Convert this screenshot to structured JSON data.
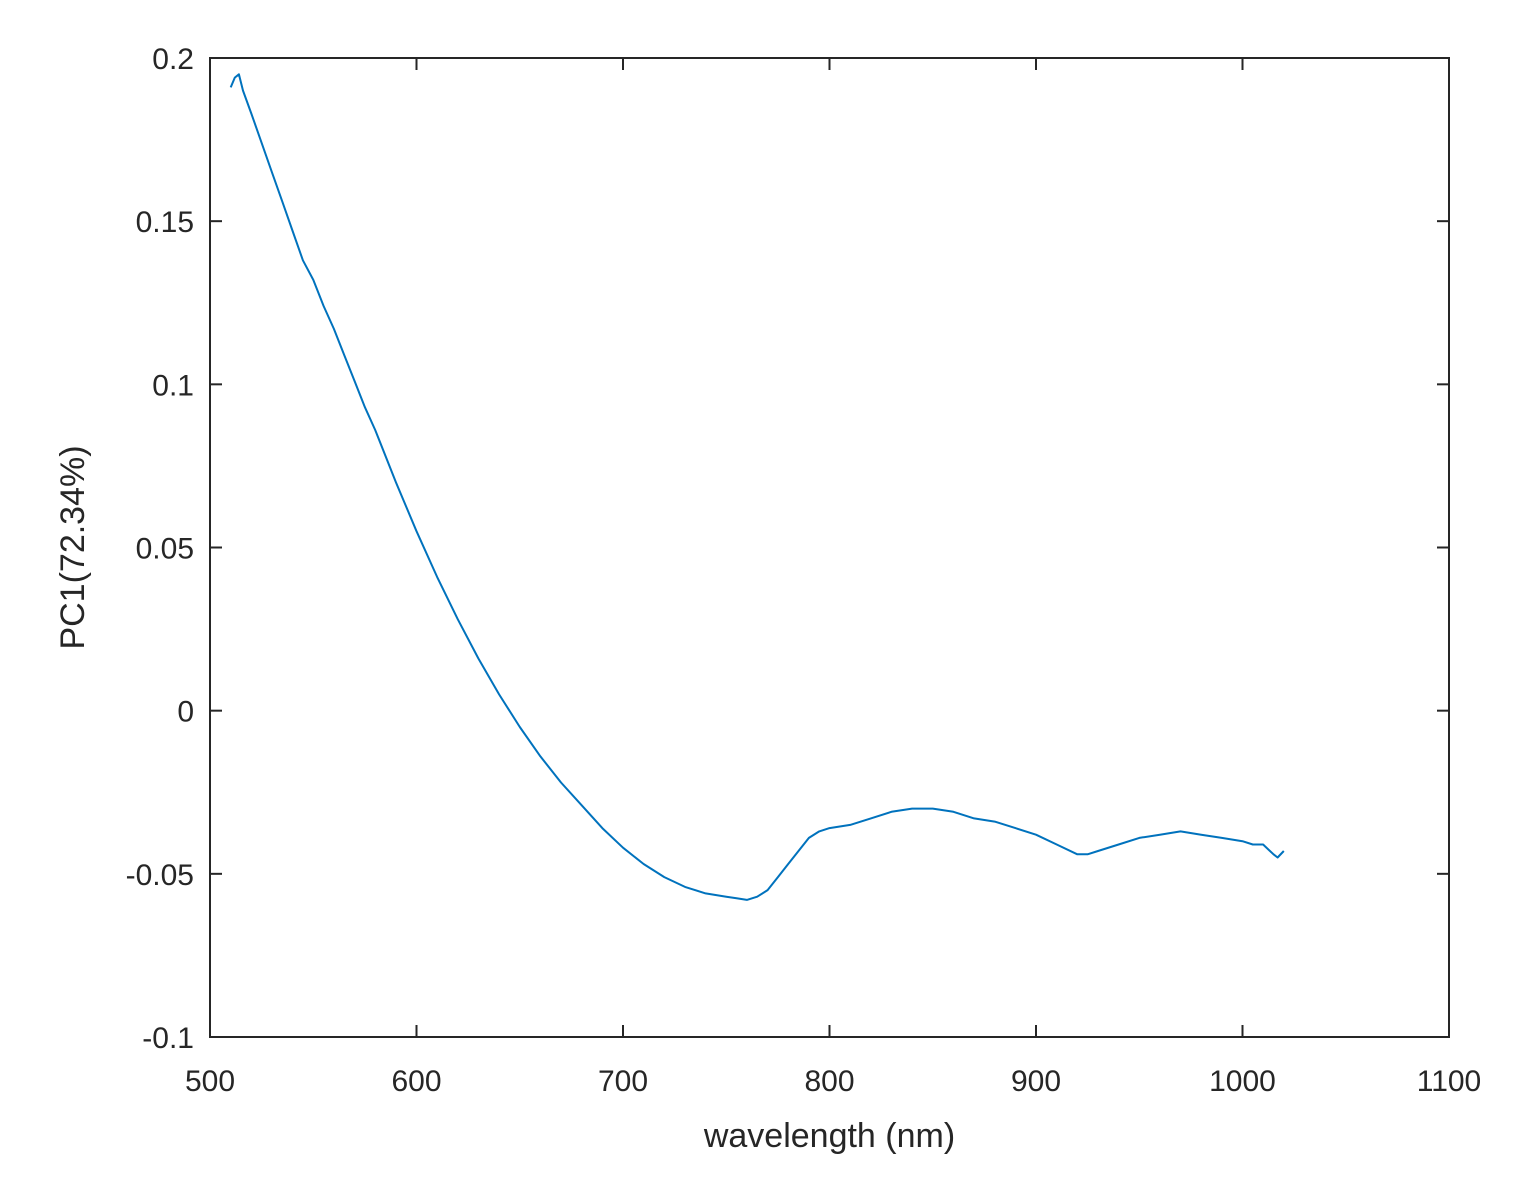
{
  "chart_data": {
    "type": "line",
    "title": "",
    "xlabel": "wavelength (nm)",
    "ylabel": "PC1(72.34%)",
    "xlim": [
      500,
      1100
    ],
    "ylim": [
      -0.1,
      0.2
    ],
    "xticks": [
      "500",
      "600",
      "700",
      "800",
      "900",
      "1000",
      "1100"
    ],
    "yticks": [
      "-0.1",
      "-0.05",
      "0",
      "0.05",
      "0.1",
      "0.15",
      "0.2"
    ],
    "grid": false,
    "legend": "none",
    "series": [
      {
        "color": "#0072BD",
        "x": [
          510,
          512,
          514,
          516,
          520,
          525,
          530,
          535,
          540,
          545,
          550,
          555,
          560,
          565,
          570,
          575,
          580,
          590,
          600,
          610,
          620,
          630,
          640,
          650,
          660,
          670,
          680,
          690,
          700,
          710,
          720,
          730,
          740,
          750,
          755,
          760,
          765,
          770,
          775,
          780,
          785,
          790,
          795,
          800,
          810,
          820,
          830,
          840,
          850,
          860,
          870,
          880,
          890,
          900,
          910,
          920,
          925,
          930,
          940,
          950,
          960,
          970,
          980,
          990,
          1000,
          1005,
          1010,
          1015,
          1017,
          1020
        ],
        "y": [
          0.191,
          0.194,
          0.195,
          0.19,
          0.183,
          0.174,
          0.165,
          0.156,
          0.147,
          0.138,
          0.132,
          0.124,
          0.117,
          0.109,
          0.101,
          0.093,
          0.086,
          0.07,
          0.055,
          0.041,
          0.028,
          0.016,
          0.005,
          -0.005,
          -0.014,
          -0.022,
          -0.029,
          -0.036,
          -0.042,
          -0.047,
          -0.051,
          -0.054,
          -0.056,
          -0.057,
          -0.0575,
          -0.058,
          -0.057,
          -0.055,
          -0.051,
          -0.047,
          -0.043,
          -0.039,
          -0.037,
          -0.036,
          -0.035,
          -0.033,
          -0.031,
          -0.03,
          -0.03,
          -0.031,
          -0.033,
          -0.034,
          -0.036,
          -0.038,
          -0.041,
          -0.044,
          -0.044,
          -0.043,
          -0.041,
          -0.039,
          -0.038,
          -0.037,
          -0.038,
          -0.039,
          -0.04,
          -0.041,
          -0.041,
          -0.044,
          -0.045,
          -0.043
        ]
      }
    ]
  }
}
